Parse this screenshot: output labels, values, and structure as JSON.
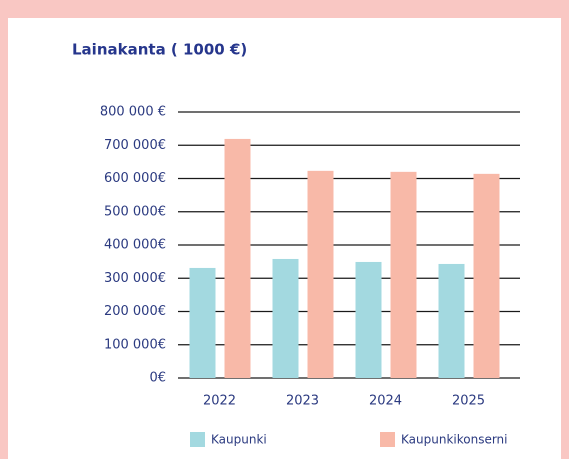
{
  "chart_data": {
    "type": "bar",
    "title": "Lainakanta ( 1000 €)",
    "categories": [
      "2022",
      "2023",
      "2024",
      "2025"
    ],
    "series": [
      {
        "name": "Kaupunki",
        "color": "#a3d9e0",
        "values": [
          331000,
          358000,
          349000,
          343000
        ]
      },
      {
        "name": "Kaupunkikonserni",
        "color": "#f8b9a8",
        "values": [
          719000,
          623000,
          620000,
          614000
        ]
      }
    ],
    "ylim": [
      0,
      800000
    ],
    "yticks": [
      {
        "value": 0,
        "label": "0€"
      },
      {
        "value": 100000,
        "label": "100 000€"
      },
      {
        "value": 200000,
        "label": "200 000€"
      },
      {
        "value": 300000,
        "label": "300 000€"
      },
      {
        "value": 400000,
        "label": "400 000€"
      },
      {
        "value": 500000,
        "label": "500 000€"
      },
      {
        "value": 600000,
        "label": "600 000€"
      },
      {
        "value": 700000,
        "label": "700 000€"
      },
      {
        "value": 800000,
        "label": "800 000 €"
      }
    ],
    "grid": true,
    "legend": "bottom"
  }
}
